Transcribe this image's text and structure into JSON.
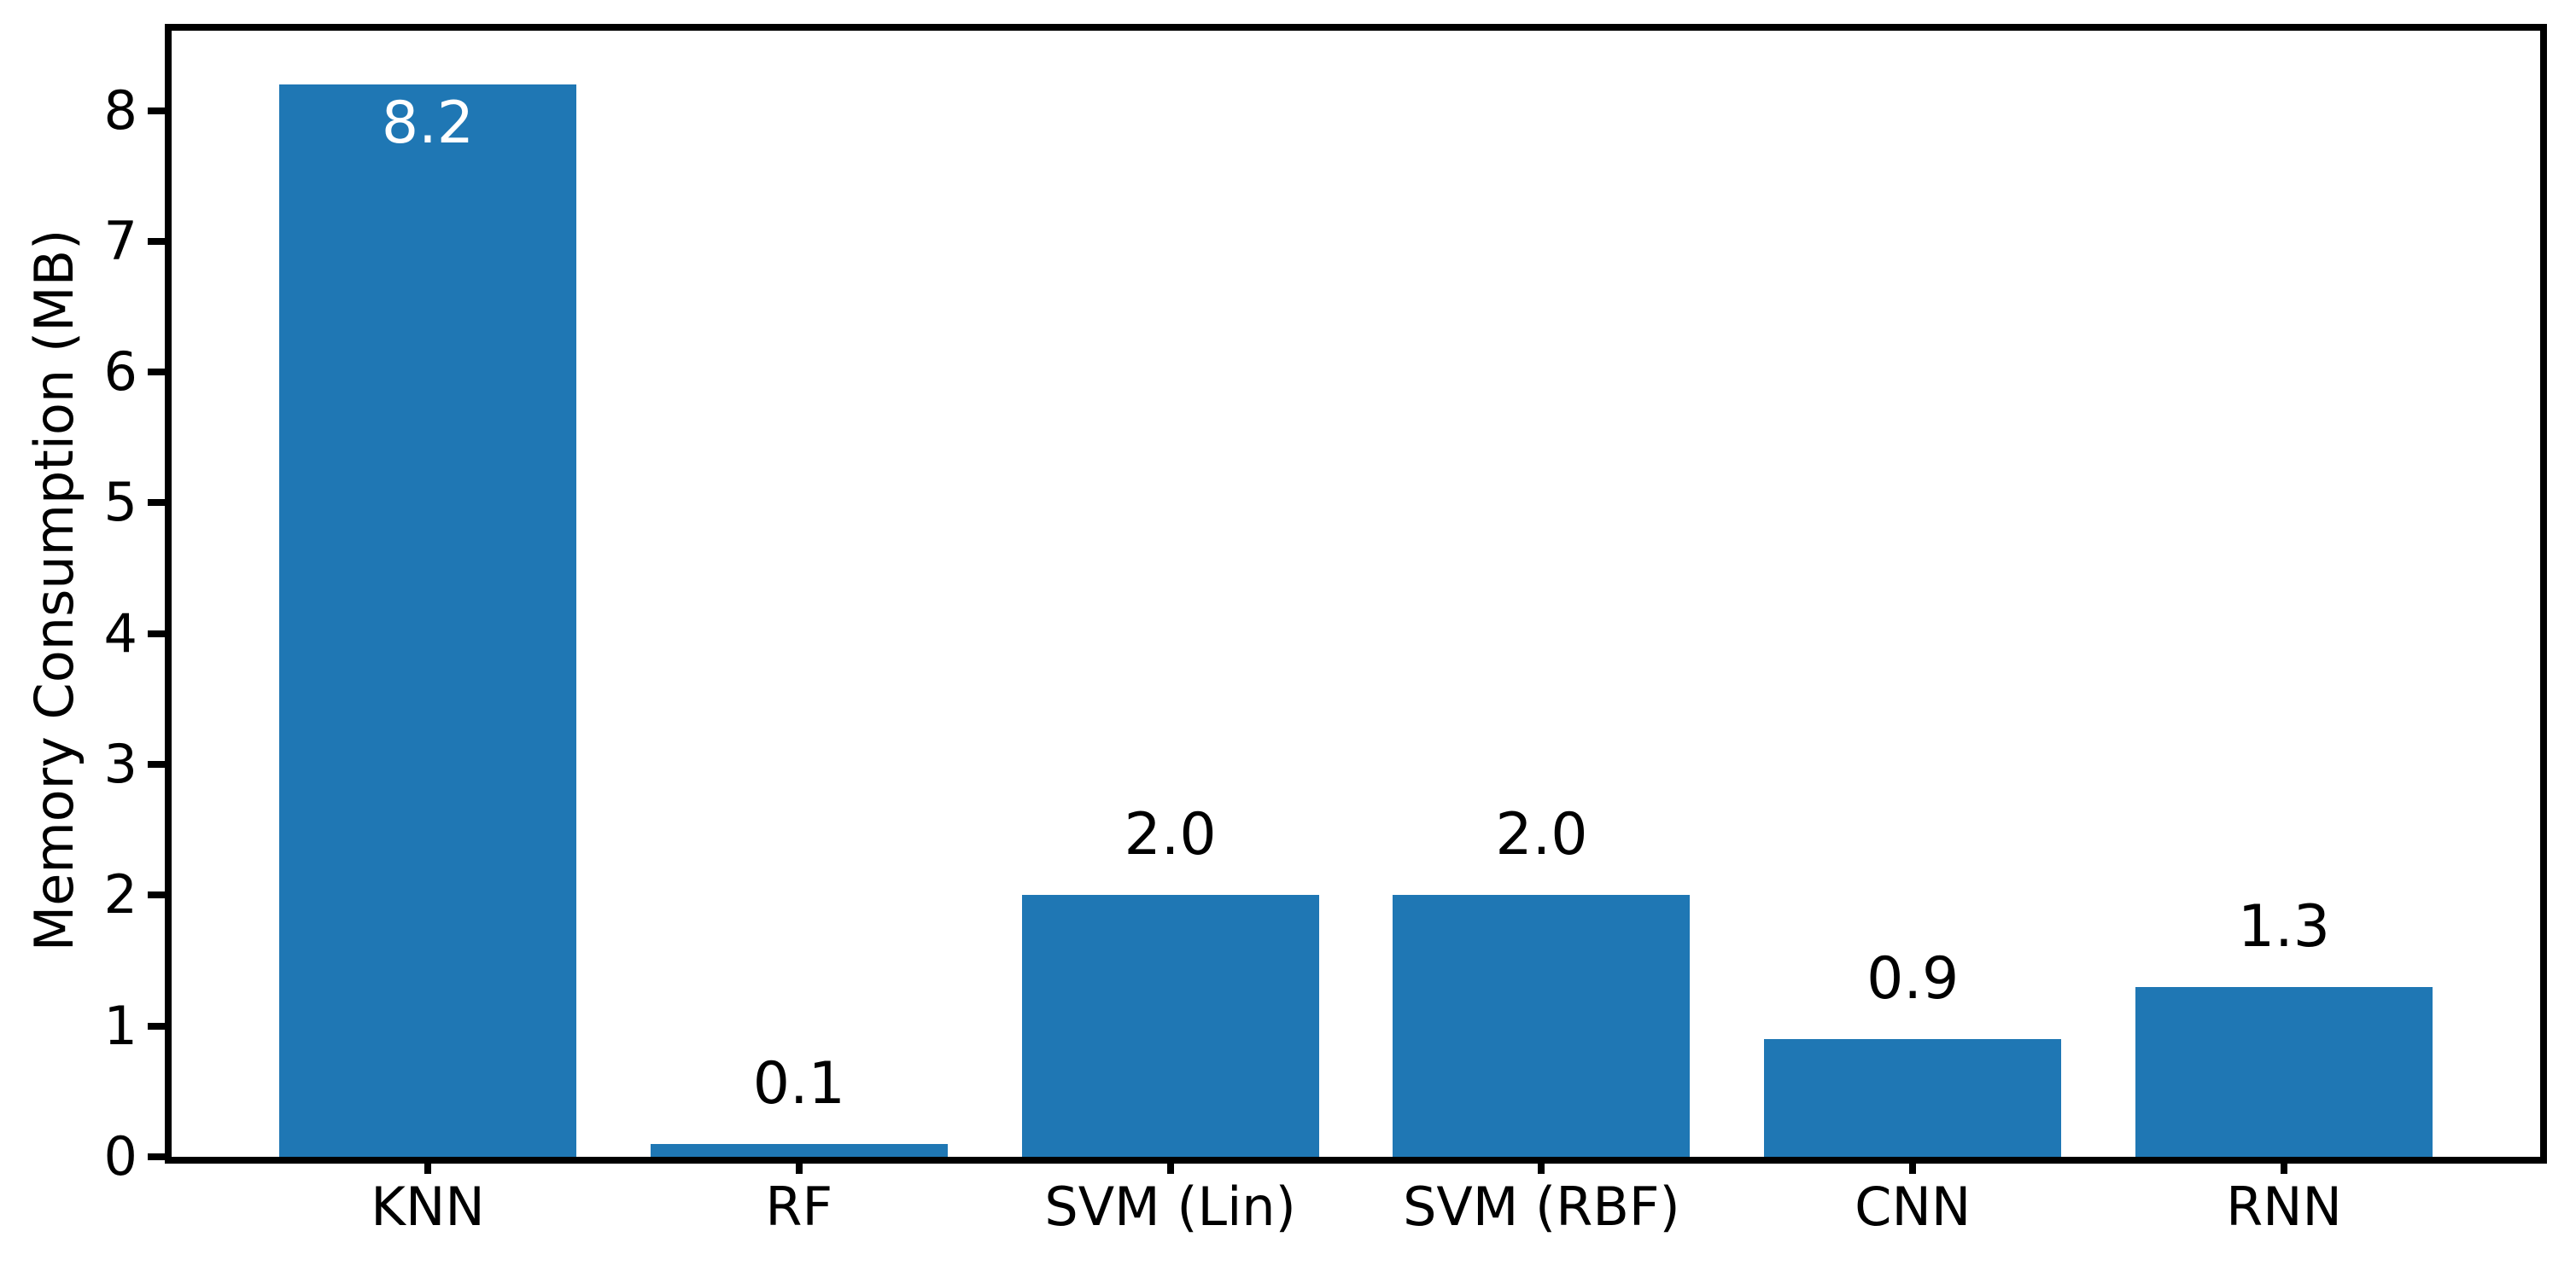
{
  "chart_data": {
    "type": "bar",
    "title": "",
    "xlabel": "",
    "ylabel": "Memory Consumption (MB)",
    "categories": [
      "KNN",
      "RF",
      "SVM (Lin)",
      "SVM (RBF)",
      "CNN",
      "RNN"
    ],
    "values": [
      8.2,
      0.1,
      2.0,
      2.0,
      0.9,
      1.3
    ],
    "value_labels": [
      "8.2",
      "0.1",
      "2.0",
      "2.0",
      "0.9",
      "1.3"
    ],
    "value_label_placements": [
      "inside-top",
      "above",
      "above",
      "above",
      "above",
      "above"
    ],
    "value_label_colors": [
      "#ffffff",
      "#000000",
      "#000000",
      "#000000",
      "#000000",
      "#000000"
    ],
    "bar_color": "#1f77b4",
    "axis_color": "#000000",
    "background_color": "#ffffff",
    "bar_width": 0.8,
    "xlim": [
      -0.69,
      5.69
    ],
    "ylim": [
      0,
      8.61
    ],
    "yticks": [
      "0",
      "1",
      "2",
      "3",
      "4",
      "5",
      "6",
      "7",
      "8"
    ],
    "grid": false,
    "legend": null
  }
}
